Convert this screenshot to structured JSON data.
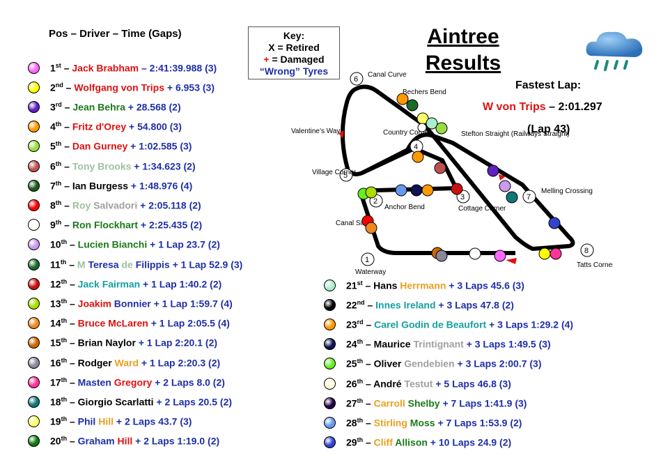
{
  "header": {
    "columns": "Pos – Driver – Time (Gaps)"
  },
  "key": {
    "title": "Key:",
    "retired": "X = Retired",
    "damaged_symbol": "+",
    "damaged_text": " = Damaged",
    "wrong_tyres": "“Wrong” Tyres"
  },
  "title": {
    "line1": "Aintree",
    "line2": "Results"
  },
  "fastest_lap": {
    "label": "Fastest Lap:",
    "driver": "W von Trips",
    "time": " – 2:01.297",
    "lap": "(Lap 43)"
  },
  "track_labels": {
    "canal_curve": "Canal Curve",
    "bechers_bend": "Bechers Bend",
    "country_corner": "Country Corner",
    "valentines_way": "Valentine’s Way",
    "stefton_straight": "Stefton Straight (Railways Straight)",
    "village_corner": "Village Corner",
    "melling_crossing": "Melling Crossing",
    "anchor_bend": "Anchor Bend",
    "cottage_corner": "Cottage Corner",
    "canal_side": "Canal Side",
    "waterway": "Waterway",
    "tatts_corner": "Tatts Corner"
  },
  "turn_numbers": [
    "1",
    "2",
    "3",
    "4",
    "5",
    "6",
    "7",
    "8"
  ],
  "colors": {
    "blue": "#1f2ea8",
    "red": "#e01010",
    "green": "#1a7a1a",
    "orange": "#e8a020",
    "teal": "#15a0a0",
    "grey": "#a0a0a0",
    "lightgreen": "#90c090",
    "black": "#000000"
  },
  "icons": {
    "weather": "rain-cloud-icon"
  },
  "results_left": [
    {
      "pos": "1",
      "suffix": "st",
      "ball": "#ff66ff",
      "parts": [
        {
          "t": "Jack Brabham",
          "c": "#e01010"
        },
        {
          "t": " – 2:41:39.988 (3)",
          "c": "#1f2ea8"
        }
      ]
    },
    {
      "pos": "2",
      "suffix": "nd",
      "ball": "#ffff00",
      "parts": [
        {
          "t": "Wolfgang von Trips",
          "c": "#e01010"
        },
        {
          "t": " + 6.953 (3)",
          "c": "#1f2ea8"
        }
      ]
    },
    {
      "pos": "3",
      "suffix": "rd",
      "ball": "#6020c0",
      "parts": [
        {
          "t": "Jean Behra",
          "c": "#1a7a1a"
        },
        {
          "t": " + 28.568 (2)",
          "c": "#1f2ea8"
        }
      ]
    },
    {
      "pos": "4",
      "suffix": "th",
      "ball": "#ff9900",
      "parts": [
        {
          "t": "Fritz d'Orey",
          "c": "#e01010"
        },
        {
          "t": " + 54.800 (3)",
          "c": "#1f2ea8"
        }
      ]
    },
    {
      "pos": "5",
      "suffix": "th",
      "ball": "#99dd44",
      "parts": [
        {
          "t": "Dan Gurney",
          "c": "#e01010"
        },
        {
          "t": " + 1:02.585 (3)",
          "c": "#1f2ea8"
        }
      ]
    },
    {
      "pos": "6",
      "suffix": "th",
      "ball": "#c05050",
      "parts": [
        {
          "t": "Tony Brooks",
          "c": "#a0c0a0"
        },
        {
          "t": " + 1:34.623 (2)",
          "c": "#1f2ea8"
        }
      ]
    },
    {
      "pos": "7",
      "suffix": "th",
      "ball": "#1a5a1a",
      "parts": [
        {
          "t": "Ian Burgess",
          "c": "#000000"
        },
        {
          "t": " + 1:48.976 (4)",
          "c": "#1f2ea8"
        }
      ]
    },
    {
      "pos": "8",
      "suffix": "th",
      "ball": "#ff0000",
      "parts": [
        {
          "t": "Roy ",
          "c": "#a0c0a0"
        },
        {
          "t": "Salvadori",
          "c": "#a0a0a0"
        },
        {
          "t": " + 2:05.118 (2)",
          "c": "#1f2ea8"
        }
      ]
    },
    {
      "pos": "9",
      "suffix": "th",
      "ball": "#ffffff",
      "parts": [
        {
          "t": "Ron Flockhart",
          "c": "#1a7a1a"
        },
        {
          "t": " + 2:25.435 (2)",
          "c": "#1f2ea8"
        }
      ]
    },
    {
      "pos": "10",
      "suffix": "th",
      "ball": "#cc99ee",
      "parts": [
        {
          "t": "Lucien Bianchi",
          "c": "#1a7a1a"
        },
        {
          "t": " + 1 Lap 23.7 (2)",
          "c": "#1f2ea8"
        }
      ]
    },
    {
      "pos": "11",
      "suffix": "th",
      "ball": "#1a6a2a",
      "parts": [
        {
          "t": "M ",
          "c": "#a0c0a0"
        },
        {
          "t": "Teresa ",
          "c": "#1f2ea8"
        },
        {
          "t": "de ",
          "c": "#a0c0a0"
        },
        {
          "t": "Filippis",
          "c": "#1f2ea8"
        },
        {
          "t": " + 1 Lap 52.9 (3)",
          "c": "#1f2ea8"
        }
      ]
    },
    {
      "pos": "12",
      "suffix": "th",
      "ball": "#cc1111",
      "parts": [
        {
          "t": "Jack Fairman",
          "c": "#15a0a0"
        },
        {
          "t": " + 1 Lap 1:40.2 (2)",
          "c": "#1f2ea8"
        }
      ]
    },
    {
      "pos": "13",
      "suffix": "th",
      "ball": "#aadd00",
      "parts": [
        {
          "t": "Joakim ",
          "c": "#e01010"
        },
        {
          "t": "Bonnier",
          "c": "#1f2ea8"
        },
        {
          "t": " + 1 Lap 1:59.7 (4)",
          "c": "#1f2ea8"
        }
      ]
    },
    {
      "pos": "14",
      "suffix": "th",
      "ball": "#ee8822",
      "parts": [
        {
          "t": "Bruce McLaren",
          "c": "#e01010"
        },
        {
          "t": " + 1 Lap 2:05.5 (4)",
          "c": "#1f2ea8"
        }
      ]
    },
    {
      "pos": "15",
      "suffix": "th",
      "ball": "#cc6600",
      "parts": [
        {
          "t": "Brian Naylor",
          "c": "#000000"
        },
        {
          "t": " + 1 Lap 2:20.1 (2)",
          "c": "#1f2ea8"
        }
      ]
    },
    {
      "pos": "16",
      "suffix": "th",
      "ball": "#888899",
      "parts": [
        {
          "t": "Rodger ",
          "c": "#000000"
        },
        {
          "t": "Ward",
          "c": "#e8a020"
        },
        {
          "t": " + 1 Lap 2:20.3 (2)",
          "c": "#1f2ea8"
        }
      ]
    },
    {
      "pos": "17",
      "suffix": "th",
      "ball": "#ff3399",
      "parts": [
        {
          "t": "Masten ",
          "c": "#1f2ea8"
        },
        {
          "t": "Gregory",
          "c": "#e01010"
        },
        {
          "t": " + 2 Laps 8.0 (2)",
          "c": "#1f2ea8"
        }
      ]
    },
    {
      "pos": "18",
      "suffix": "th",
      "ball": "#117777",
      "parts": [
        {
          "t": "Giorgio Scarlatti",
          "c": "#000000"
        },
        {
          "t": " + 2 Laps 20.5 (2)",
          "c": "#1f2ea8"
        }
      ]
    },
    {
      "pos": "19",
      "suffix": "th",
      "ball": "#ffff66",
      "parts": [
        {
          "t": "Phil ",
          "c": "#1f2ea8"
        },
        {
          "t": "Hill",
          "c": "#e8a020"
        },
        {
          "t": " + 2 Laps 43.7 (3)",
          "c": "#1f2ea8"
        }
      ]
    },
    {
      "pos": "20",
      "suffix": "th",
      "ball": "#117711",
      "parts": [
        {
          "t": "Graham ",
          "c": "#1f2ea8"
        },
        {
          "t": "Hill",
          "c": "#e01010"
        },
        {
          "t": " + 2 Laps 1:19.0 (2)",
          "c": "#1f2ea8"
        }
      ]
    }
  ],
  "results_right": [
    {
      "pos": "21",
      "suffix": "st",
      "ball": "#aaeecc",
      "parts": [
        {
          "t": "Hans ",
          "c": "#000000"
        },
        {
          "t": "Herrmann",
          "c": "#e8a020"
        },
        {
          "t": " + 3 Laps 45.6 (3)",
          "c": "#1f2ea8"
        }
      ]
    },
    {
      "pos": "22",
      "suffix": "nd",
      "ball": "#000000",
      "parts": [
        {
          "t": "Innes Ireland",
          "c": "#15a0a0"
        },
        {
          "t": " + 3 Laps 47.8 (2)",
          "c": "#1f2ea8"
        }
      ]
    },
    {
      "pos": "23",
      "suffix": "rd",
      "ball": "#ff9900",
      "parts": [
        {
          "t": "Carel Godin de Beaufort",
          "c": "#15a0a0"
        },
        {
          "t": " + 3 Laps 1:29.2 (4)",
          "c": "#1f2ea8"
        }
      ]
    },
    {
      "pos": "24",
      "suffix": "th",
      "ball": "#111155",
      "parts": [
        {
          "t": "Maurice ",
          "c": "#000000"
        },
        {
          "t": "Trintignant",
          "c": "#a0a0a0"
        },
        {
          "t": " + 3 Laps 1:49.5 (3)",
          "c": "#1f2ea8"
        }
      ]
    },
    {
      "pos": "25",
      "suffix": "th",
      "ball": "#66ee22",
      "parts": [
        {
          "t": "Oliver ",
          "c": "#000000"
        },
        {
          "t": "Gendebien",
          "c": "#a0a0a0"
        },
        {
          "t": " + 3 Laps 2:00.7 (3)",
          "c": "#1f2ea8"
        }
      ]
    },
    {
      "pos": "26",
      "suffix": "th",
      "ball": "#ffffdd",
      "parts": [
        {
          "t": "André ",
          "c": "#000000"
        },
        {
          "t": "Testut",
          "c": "#a0a0a0"
        },
        {
          "t": " + 5 Laps 46.8 (3)",
          "c": "#1f2ea8"
        }
      ]
    },
    {
      "pos": "27",
      "suffix": "th",
      "ball": "#220044",
      "parts": [
        {
          "t": "Carroll ",
          "c": "#e8a020"
        },
        {
          "t": "Shelby",
          "c": "#1a7a1a"
        },
        {
          "t": " + 7 Laps 1:41.9 (3)",
          "c": "#1f2ea8"
        }
      ]
    },
    {
      "pos": "28",
      "suffix": "th",
      "ball": "#6699ee",
      "parts": [
        {
          "t": "Stirling ",
          "c": "#e8a020"
        },
        {
          "t": "Moss",
          "c": "#1a7a1a"
        },
        {
          "t": " + 7 Laps 1:53.9 (2)",
          "c": "#1f2ea8"
        }
      ]
    },
    {
      "pos": "29",
      "suffix": "th",
      "ball": "#3344cc",
      "parts": [
        {
          "t": "Cliff ",
          "c": "#e8a020"
        },
        {
          "t": "Allison",
          "c": "#1a7a1a"
        },
        {
          "t": " + 10 Laps 24.9 (2)",
          "c": "#1f2ea8"
        }
      ]
    }
  ]
}
